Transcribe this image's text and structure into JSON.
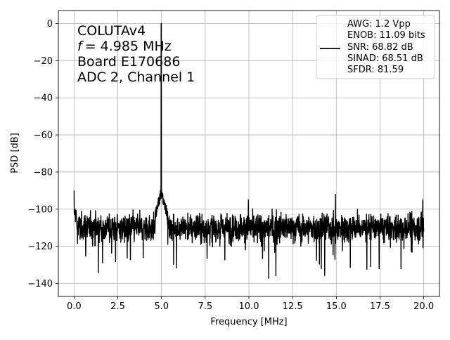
{
  "chart_data": {
    "type": "line",
    "xlabel": "Frequency [MHz]",
    "ylabel": "PSD [dB]",
    "xlim": [
      -0.9,
      20.9
    ],
    "ylim": [
      -147,
      7
    ],
    "xticks": [
      0.0,
      2.5,
      5.0,
      7.5,
      10.0,
      12.5,
      15.0,
      17.5,
      20.0
    ],
    "xtick_labels": [
      "0.0",
      "2.5",
      "5.0",
      "7.5",
      "10.0",
      "12.5",
      "15.0",
      "17.5",
      "20.0"
    ],
    "yticks": [
      0,
      -20,
      -40,
      -60,
      -80,
      -100,
      -120,
      -140
    ],
    "ytick_labels": [
      "0",
      "−20",
      "−40",
      "−60",
      "−80",
      "−100",
      "−120",
      "−140"
    ],
    "grid": true,
    "line_color": "#000000",
    "annotation_lines": [
      "COLUTAv4",
      "= 4.985 MHz",
      "Board E170686",
      "ADC 2, Channel 1"
    ],
    "annotation_f_symbol": "f",
    "legend": {
      "placement": "top-right",
      "lines": [
        "AWG: 1.2 Vpp",
        "ENOB: 11.09 bits",
        "SNR: 68.82 dB",
        "SINAD: 68.51 dB",
        "SFDR: 81.59"
      ]
    },
    "series": [
      {
        "x_start": 0.0,
        "x_end": 20.0,
        "noise_floor_mean": -110,
        "noise_floor_min": -140,
        "peaks": [
          {
            "x": 0.0,
            "y": -90
          },
          {
            "x": 4.985,
            "y": 0
          },
          {
            "x": 9.97,
            "y": -95
          },
          {
            "x": 14.95,
            "y": -92
          },
          {
            "x": 19.94,
            "y": -95
          }
        ]
      }
    ]
  }
}
